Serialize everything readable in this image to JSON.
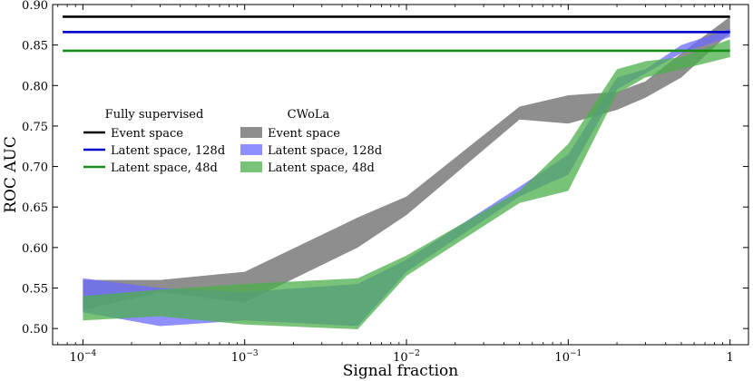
{
  "chart_data": {
    "type": "area",
    "xlabel": "Signal fraction",
    "ylabel": "ROC AUC",
    "x_scale": "log",
    "xlim": [
      6.5e-05,
      1.3
    ],
    "ylim": [
      0.48,
      0.9
    ],
    "x_ticks": [
      {
        "value": 0.0001,
        "base": "10",
        "exp": "−4"
      },
      {
        "value": 0.001,
        "base": "10",
        "exp": "−3"
      },
      {
        "value": 0.01,
        "base": "10",
        "exp": "−2"
      },
      {
        "value": 0.1,
        "base": "10",
        "exp": "−1"
      },
      {
        "value": 1,
        "base": "1",
        "exp": ""
      }
    ],
    "y_ticks": [
      {
        "value": 0.5,
        "label": "0.50"
      },
      {
        "value": 0.55,
        "label": "0.55"
      },
      {
        "value": 0.6,
        "label": "0.60"
      },
      {
        "value": 0.65,
        "label": "0.65"
      },
      {
        "value": 0.7,
        "label": "0.70"
      },
      {
        "value": 0.75,
        "label": "0.75"
      },
      {
        "value": 0.8,
        "label": "0.80"
      },
      {
        "value": 0.85,
        "label": "0.85"
      },
      {
        "value": 0.9,
        "label": "0.90"
      }
    ],
    "grid": false,
    "legend_groups": [
      {
        "title": "Fully supervised",
        "position": "middle-left"
      },
      {
        "title": "CWoLa",
        "position": "middle-left"
      }
    ],
    "supervised_lines": [
      {
        "name": "Event space",
        "value": 0.885,
        "color": "#000000"
      },
      {
        "name": "Latent space, 128d",
        "value": 0.866,
        "color": "#0000cc"
      },
      {
        "name": "Latent space, 48d",
        "value": 0.843,
        "color": "#168c16"
      }
    ],
    "cwola_bands": [
      {
        "name": "Event space",
        "color": "#7a7a7a",
        "opacity": 0.85,
        "x": [
          0.0001,
          0.0003,
          0.001,
          0.005,
          0.01,
          0.05,
          0.1,
          0.2,
          0.3,
          0.5,
          1
        ],
        "upper": [
          0.56,
          0.56,
          0.57,
          0.637,
          0.663,
          0.774,
          0.788,
          0.792,
          0.805,
          0.84,
          0.885
        ],
        "lower": [
          0.523,
          0.545,
          0.532,
          0.6,
          0.64,
          0.758,
          0.753,
          0.77,
          0.785,
          0.81,
          0.865
        ]
      },
      {
        "name": "Latent space, 128d",
        "color": "#6a6aff",
        "opacity": 0.75,
        "x": [
          0.0001,
          0.0003,
          0.001,
          0.005,
          0.01,
          0.05,
          0.1,
          0.2,
          0.3,
          0.5,
          1
        ],
        "upper": [
          0.562,
          0.55,
          0.545,
          0.555,
          0.585,
          0.675,
          0.715,
          0.81,
          0.82,
          0.85,
          0.87
        ],
        "lower": [
          0.52,
          0.503,
          0.51,
          0.503,
          0.57,
          0.663,
          0.69,
          0.795,
          0.815,
          0.84,
          0.86
        ]
      },
      {
        "name": "Latent space, 48d",
        "color": "#4caf4c",
        "opacity": 0.75,
        "x": [
          0.0001,
          0.0003,
          0.001,
          0.005,
          0.01,
          0.05,
          0.1,
          0.2,
          0.3,
          0.5,
          1
        ],
        "upper": [
          0.54,
          0.548,
          0.555,
          0.562,
          0.59,
          0.67,
          0.728,
          0.82,
          0.83,
          0.835,
          0.857
        ],
        "lower": [
          0.51,
          0.515,
          0.505,
          0.499,
          0.565,
          0.655,
          0.67,
          0.79,
          0.81,
          0.82,
          0.835
        ]
      }
    ]
  }
}
